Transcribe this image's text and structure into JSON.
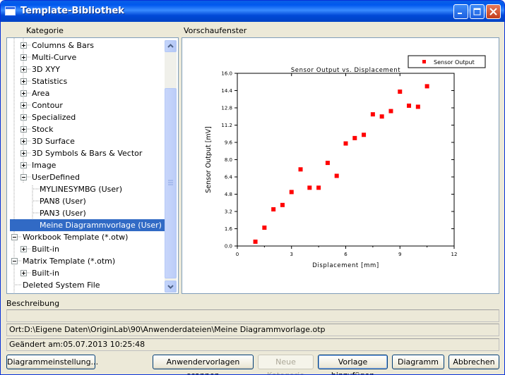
{
  "window": {
    "title": "Template-Bibliothek"
  },
  "labels": {
    "category": "Kategorie",
    "preview": "Vorschaufenster",
    "description": "Beschreibung"
  },
  "tree": [
    {
      "label": "Columns & Bars",
      "expander": "plus",
      "level": 1
    },
    {
      "label": "Multi-Curve",
      "expander": "plus",
      "level": 1
    },
    {
      "label": "3D XYY",
      "expander": "plus",
      "level": 1
    },
    {
      "label": "Statistics",
      "expander": "plus",
      "level": 1
    },
    {
      "label": "Area",
      "expander": "plus",
      "level": 1
    },
    {
      "label": "Contour",
      "expander": "plus",
      "level": 1
    },
    {
      "label": "Specialized",
      "expander": "plus",
      "level": 1
    },
    {
      "label": "Stock",
      "expander": "plus",
      "level": 1
    },
    {
      "label": "3D Surface",
      "expander": "plus",
      "level": 1
    },
    {
      "label": "3D Symbols & Bars & Vector",
      "expander": "plus",
      "level": 1
    },
    {
      "label": "Image",
      "expander": "plus",
      "level": 1
    },
    {
      "label": "UserDefined",
      "expander": "minus",
      "level": 1
    },
    {
      "label": "MYLINESYMBG (User)",
      "expander": "none",
      "level": 2
    },
    {
      "label": "PAN8 (User)",
      "expander": "none",
      "level": 2
    },
    {
      "label": "PAN3 (User)",
      "expander": "none",
      "level": 2
    },
    {
      "label": "Meine Diagrammvorlage (User)",
      "expander": "none",
      "level": 2,
      "selected": true
    },
    {
      "label": "Workbook Template (*.otw)",
      "expander": "minus",
      "level": 0
    },
    {
      "label": "Built-in",
      "expander": "plus",
      "level": 1
    },
    {
      "label": "Matrix Template (*.otm)",
      "expander": "minus",
      "level": 0
    },
    {
      "label": "Built-in",
      "expander": "plus",
      "level": 1
    },
    {
      "label": "Deleted System File",
      "expander": "none",
      "level": 0
    }
  ],
  "description": {
    "value": ""
  },
  "location": "Ort:D:\\Eigene Daten\\OriginLab\\90\\Anwenderdateien\\Meine Diagrammvorlage.otp",
  "modified": "Geändert am:05.07.2013 10:25:48",
  "buttons": {
    "diagram_settings": "Diagrammeinstellung...",
    "scan_user_templates": "Anwendervorlagen scannen",
    "new_category": "Neue Kategorie",
    "add_template": "Vorlage hinzufügen",
    "diagram": "Diagramm",
    "cancel": "Abbrechen"
  },
  "chart_data": {
    "type": "scatter",
    "title": "Sensor Output vs. Displacement",
    "xlabel": "Displacement [mm]",
    "ylabel": "Sensor Output [mV]",
    "xlim": [
      0,
      12
    ],
    "ylim": [
      0,
      16
    ],
    "xticks": [
      "0",
      "3",
      "6",
      "9",
      "12"
    ],
    "yticks": [
      "0.0",
      "1.6",
      "3.2",
      "4.8",
      "6.4",
      "8.0",
      "9.6",
      "11.2",
      "12.8",
      "14.4",
      "16.0"
    ],
    "legend": "top-right",
    "color": "#ff0000",
    "series": [
      {
        "name": "Sensor Output",
        "x": [
          1.0,
          1.5,
          2.0,
          2.5,
          3.0,
          3.5,
          4.0,
          4.5,
          5.0,
          5.5,
          6.0,
          6.5,
          7.0,
          7.5,
          8.0,
          8.5,
          9.0,
          9.5,
          10.0,
          10.5
        ],
        "y": [
          0.4,
          1.7,
          3.4,
          3.8,
          5.0,
          7.1,
          5.4,
          5.4,
          7.7,
          6.5,
          9.5,
          10.0,
          10.3,
          12.2,
          12.0,
          12.5,
          14.3,
          13.0,
          12.9,
          14.8
        ]
      }
    ]
  }
}
